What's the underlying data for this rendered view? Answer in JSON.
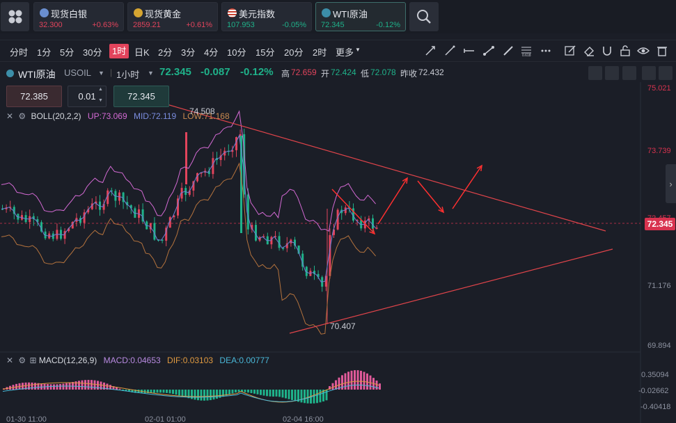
{
  "quotes": [
    {
      "name": "现货白银",
      "price": "32.300",
      "change": "+0.63%",
      "dir": "up",
      "icon": "silver-coin-icon"
    },
    {
      "name": "现货黄金",
      "price": "2859.21",
      "change": "+0.61%",
      "dir": "up",
      "icon": "gold-coin-icon"
    },
    {
      "name": "美元指数",
      "price": "107.953",
      "change": "-0.05%",
      "dir": "down",
      "icon": "us-flag-icon"
    },
    {
      "name": "WTI原油",
      "price": "72.345",
      "change": "-0.12%",
      "dir": "down",
      "icon": "oil-drop-icon"
    }
  ],
  "periods": [
    "分时",
    "1分",
    "5分",
    "30分",
    "1时",
    "日K",
    "2分",
    "3分",
    "4分",
    "10分",
    "15分",
    "20分",
    "2时",
    "更多"
  ],
  "active_period": "1时",
  "symbol": {
    "name": "WTI原油",
    "code": "USOIL",
    "interval": "1小时",
    "price": "72.345",
    "change": "-0.087",
    "change_pct": "-0.12%",
    "high_label": "高",
    "high": "72.659",
    "open_label": "开",
    "open": "72.424",
    "low_label": "低",
    "low": "72.078",
    "prev_label": "昨收",
    "prev": "72.432"
  },
  "order": {
    "bid": "72.385",
    "lot": "0.01",
    "ask": "72.345"
  },
  "boll": {
    "label": "BOLL(20,2,2)",
    "up": "UP:73.069",
    "mid": "MID:72.119",
    "low": "LOW:71.168"
  },
  "macd": {
    "label": "MACD(12,26,9)",
    "macd": "MACD:0.04653",
    "dif": "DIF:0.03103",
    "dea": "DEA:0.00777"
  },
  "price_axis": [
    "75.021",
    "73.739",
    "72.457",
    "71.176",
    "69.894"
  ],
  "macd_axis": [
    "0.35094",
    "-0.02662",
    "-0.40418"
  ],
  "current_tag": "72.345",
  "annotations": {
    "high": "74.508",
    "low": "70.407"
  },
  "time_labels": [
    "01-30 11:00",
    "02-01 01:00",
    "02-04 16:00"
  ],
  "colors": {
    "up": "#e2445c",
    "down": "#1fb28a",
    "bg": "#1b1e27"
  }
}
